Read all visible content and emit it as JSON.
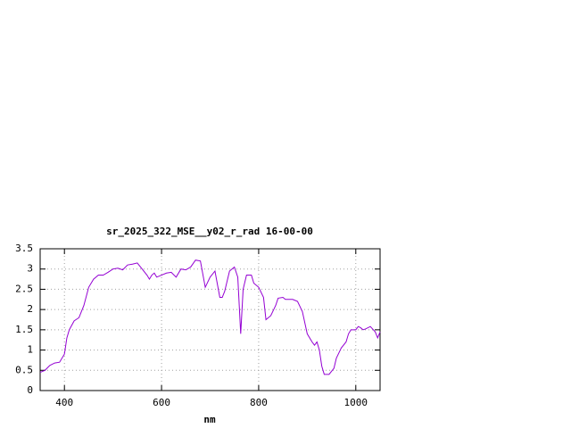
{
  "chart_data": {
    "type": "line",
    "title": "sr_2025_322_MSE__y02_r_rad 16-00-00",
    "xlabel": "nm",
    "color": "#9400d3",
    "grid": true,
    "x": [
      350,
      360,
      370,
      380,
      390,
      400,
      405,
      410,
      420,
      430,
      440,
      450,
      460,
      470,
      480,
      490,
      500,
      510,
      520,
      530,
      540,
      550,
      560,
      570,
      575,
      580,
      585,
      590,
      600,
      610,
      620,
      630,
      640,
      650,
      660,
      670,
      680,
      690,
      700,
      710,
      720,
      725,
      730,
      740,
      750,
      757,
      763,
      768,
      775,
      785,
      790,
      800,
      810,
      815,
      825,
      835,
      840,
      850,
      855,
      860,
      870,
      880,
      890,
      900,
      910,
      915,
      920,
      925,
      930,
      935,
      945,
      955,
      960,
      970,
      980,
      985,
      990,
      1000,
      1005,
      1010,
      1015,
      1020,
      1030,
      1040,
      1045,
      1050
    ],
    "values": [
      0.45,
      0.5,
      0.62,
      0.68,
      0.7,
      0.9,
      1.3,
      1.5,
      1.72,
      1.8,
      2.1,
      2.55,
      2.75,
      2.85,
      2.85,
      2.92,
      3.0,
      3.02,
      2.98,
      3.1,
      3.12,
      3.15,
      3.0,
      2.85,
      2.75,
      2.85,
      2.9,
      2.8,
      2.85,
      2.9,
      2.92,
      2.8,
      3.0,
      2.98,
      3.05,
      3.22,
      3.2,
      2.55,
      2.8,
      2.95,
      2.3,
      2.3,
      2.45,
      2.95,
      3.05,
      2.8,
      1.4,
      2.5,
      2.85,
      2.85,
      2.65,
      2.55,
      2.3,
      1.75,
      1.85,
      2.1,
      2.28,
      2.3,
      2.25,
      2.25,
      2.25,
      2.2,
      1.95,
      1.4,
      1.2,
      1.12,
      1.2,
      1.0,
      0.6,
      0.4,
      0.4,
      0.55,
      0.8,
      1.05,
      1.2,
      1.4,
      1.5,
      1.5,
      1.58,
      1.55,
      1.5,
      1.52,
      1.58,
      1.45,
      1.3,
      1.45
    ],
    "xlim": [
      350,
      1050
    ],
    "ylim": [
      0,
      3.5
    ],
    "xticks": [
      400,
      600,
      800,
      1000
    ],
    "yticks": [
      0,
      0.5,
      1,
      1.5,
      2,
      2.5,
      3,
      3.5
    ]
  }
}
